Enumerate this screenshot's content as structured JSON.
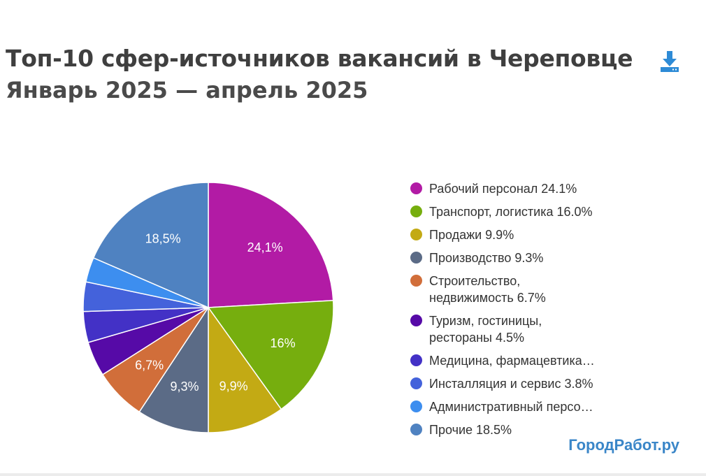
{
  "header": {
    "title": "Топ-10 сфер-источников вакансий в Череповце",
    "subtitle": "Январь 2025 — апрель 2025",
    "download_icon": "download-icon",
    "accent": "#2e8bd6"
  },
  "chart_data": {
    "type": "pie",
    "title": "Топ-10 сфер-источников вакансий в Череповце",
    "subtitle": "Январь 2025 — апрель 2025",
    "legend_position": "right",
    "slices": [
      {
        "name": "Рабочий персонал",
        "value": 24.1,
        "label": "24,1%",
        "legend": "Рабочий персонал 24.1%",
        "color": "#b21ba5"
      },
      {
        "name": "Транспорт, логистика",
        "value": 16.0,
        "label": "16%",
        "legend": "Транспорт, логистика 16.0%",
        "color": "#76ae0e"
      },
      {
        "name": "Продажи",
        "value": 9.9,
        "label": "9,9%",
        "legend": "Продажи 9.9%",
        "color": "#c3aa14"
      },
      {
        "name": "Производство",
        "value": 9.3,
        "label": "9,3%",
        "legend": "Производство 9.3%",
        "color": "#5b6b86"
      },
      {
        "name": "Строительство, недвижимость",
        "value": 6.7,
        "label": "6,7%",
        "legend": "Строительство, недвижимость 6.7%",
        "color": "#d16e3a"
      },
      {
        "name": "Туризм, гостиницы, рестораны",
        "value": 4.5,
        "label": "",
        "legend": "Туризм, гостиницы, рестораны 4.5%",
        "color": "#560aa7"
      },
      {
        "name": "Медицина, фармацевтика",
        "value": 4.0,
        "label": "",
        "legend": "Медицина, фармацевтика…",
        "color": "#4331c6"
      },
      {
        "name": "Инсталляция и сервис",
        "value": 3.8,
        "label": "",
        "legend": "Инсталляция и сервис 3.8%",
        "color": "#4462db"
      },
      {
        "name": "Административный персонал",
        "value": 3.2,
        "label": "",
        "legend": "Административный персо…",
        "color": "#3d8eef"
      },
      {
        "name": "Прочие",
        "value": 18.5,
        "label": "18,5%",
        "legend": "Прочие 18.5%",
        "color": "#4f82c1"
      }
    ]
  },
  "brand": {
    "text": "ГородРабот.ру",
    "color": "#3a86c8"
  }
}
